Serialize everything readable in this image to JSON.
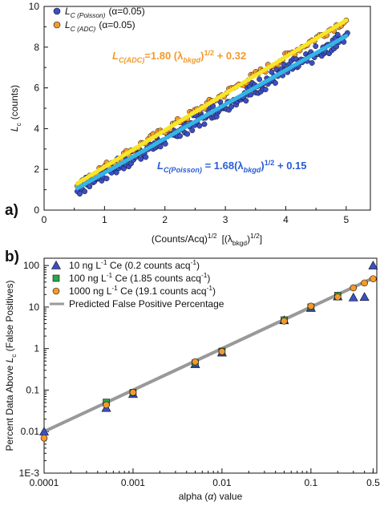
{
  "colors": {
    "poisson_points": "#3b4fc4",
    "adc_points": "#f39a2b",
    "poisson_fit": "#35b5e5",
    "adc_fit": "#f7e628",
    "predicted": "#999999",
    "green": "#2aa548",
    "poisson_eqn": "#2a5bd7",
    "adc_eqn": "#f39a2b"
  },
  "chart_data": [
    {
      "panel_label": "a)",
      "type": "scatter",
      "xlabel": "(Counts/Acq)1/2 [(λbkgd)1/2]",
      "xlabel_parts": [
        "(Counts/Acq)",
        "1/2",
        "[(λ",
        "bkgd",
        ")",
        "1/2",
        "]"
      ],
      "ylabel_parts": [
        "L",
        "c",
        "(counts)"
      ],
      "xlim": [
        0,
        5.4
      ],
      "ylim": [
        0,
        10
      ],
      "xticks": [
        "0",
        "1",
        "2",
        "3",
        "4",
        "5"
      ],
      "yticks": [
        "0",
        "2",
        "4",
        "6",
        "8",
        "10"
      ],
      "legend": {
        "position": "top-left",
        "entries": [
          {
            "parts": [
              "L",
              "C (Poisson)",
              "(α=0.05)"
            ]
          },
          {
            "parts": [
              "L",
              "C (ADC)",
              "(α=0.05)"
            ]
          }
        ]
      },
      "series": [
        {
          "x_range": [
            0.55,
            5.0
          ],
          "slope": 1.68,
          "intercept": 0.15,
          "fit": "Lc = 1.68 (λbkgd)1/2 + 0.15"
        },
        {
          "x_range": [
            0.55,
            5.0
          ],
          "slope": 1.8,
          "intercept": 0.32,
          "fit": "Lc = 1.80 (λbkgd)1/2 + 0.32"
        }
      ],
      "annotations": [
        {
          "parts": [
            "L",
            "C(ADC)",
            "=1.80 (λ",
            "bkgd",
            ")",
            "1/2",
            " + 0.32"
          ]
        },
        {
          "parts": [
            "L",
            "C(Poisson)",
            " = 1.68(λ",
            "bkgd",
            ")",
            "1/2",
            " + 0.15"
          ]
        }
      ]
    },
    {
      "panel_label": "b)",
      "type": "scatter",
      "xscale": "log",
      "yscale": "log",
      "xlabel_parts": [
        "alpha (",
        "α",
        ") value"
      ],
      "ylabel_parts": [
        "Percent Data Above ",
        "L",
        "c",
        " (False Positives)"
      ],
      "xlim": [
        0.0001,
        0.55
      ],
      "ylim": [
        0.001,
        150
      ],
      "xticks": [
        {
          "v": 0.0001,
          "label": "0.0001"
        },
        {
          "v": 0.001,
          "label": "0.001"
        },
        {
          "v": 0.01,
          "label": "0.01"
        },
        {
          "v": 0.1,
          "label": "0.1"
        },
        {
          "v": 0.5,
          "label": "0.5"
        }
      ],
      "yticks": [
        {
          "v": 100,
          "label": "100"
        },
        {
          "v": 10,
          "label": "10"
        },
        {
          "v": 1,
          "label": "1"
        },
        {
          "v": 0.1,
          "label": "0.1"
        },
        {
          "v": 0.01,
          "label": "0.01"
        },
        {
          "v": 0.001,
          "label": "1E-3"
        }
      ],
      "legend": {
        "position": "top-left",
        "entries": [
          {
            "parts": [
              "10 ng L",
              "-1",
              " Ce (0.2 counts acq",
              "-1",
              ")"
            ]
          },
          {
            "parts": [
              "100 ng L",
              "-1",
              " Ce (1.85 counts acq",
              "-1",
              ")"
            ]
          },
          {
            "parts": [
              "1000 ng L",
              "-1",
              " Ce (19.1 counts acq",
              "-1",
              ")"
            ]
          },
          {
            "parts": [
              "Predicted False Positive Percentage"
            ]
          }
        ]
      },
      "series": [
        {
          "marker": "triangle",
          "x": [
            0.0001,
            0.0005,
            0.001,
            0.005,
            0.01,
            0.05,
            0.1,
            0.2,
            0.3,
            0.4,
            0.5
          ],
          "y": [
            0.01,
            0.037,
            0.08,
            0.42,
            0.8,
            4.8,
            9.5,
            18,
            17,
            17.5,
            100
          ]
        },
        {
          "marker": "square",
          "x": [
            0.0005,
            0.001,
            0.005,
            0.01,
            0.05,
            0.1,
            0.2
          ],
          "y": [
            0.051,
            0.087,
            0.45,
            0.86,
            4.9,
            10,
            19
          ]
        },
        {
          "marker": "circle",
          "x": [
            0.0001,
            0.0005,
            0.001,
            0.005,
            0.01,
            0.05,
            0.1,
            0.2,
            0.3,
            0.4,
            0.5
          ],
          "y": [
            0.007,
            0.044,
            0.088,
            0.48,
            0.85,
            4.6,
            10.5,
            17.5,
            29,
            38,
            48
          ]
        },
        {
          "marker": "line",
          "x": [
            0.0001,
            0.5
          ],
          "y": [
            0.01,
            50
          ]
        }
      ]
    }
  ]
}
